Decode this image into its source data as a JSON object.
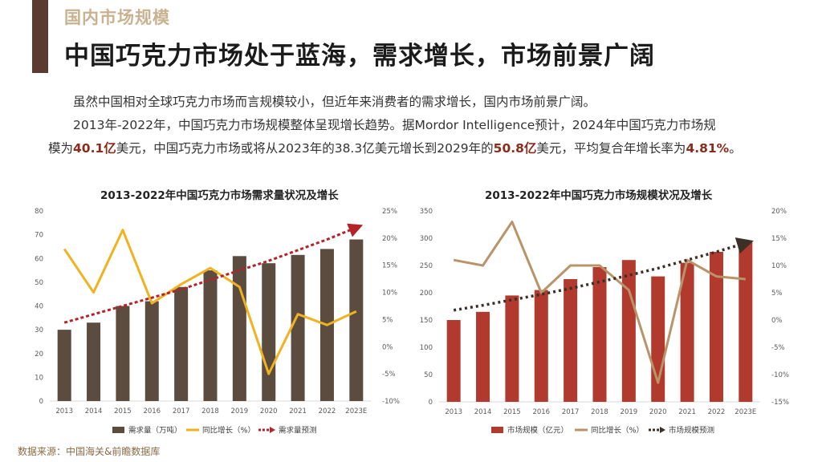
{
  "header": {
    "section_tag": "国内市场规模",
    "title": "中国巧克力市场处于蓝海，需求增长，市场前景广阔"
  },
  "body": {
    "para1": "虽然中国相对全球巧克力市场而言规模较小，但近年来消费者的需求增长，国内市场前景广阔。",
    "para2_a": "2013年-2022年，中国巧克力市场规模整体呈现增长趋势。据Mordor Intelligence预计，2024年中国巧克力市场规",
    "para2_b_pre": "模为",
    "para2_b_bold1": "40.1亿",
    "para2_b_mid1": "美元，中国巧克力市场或将从2023年的38.3亿美元增长到2029年的",
    "para2_b_bold2": "50.8亿",
    "para2_b_mid2": "美元，平均复合年增长率为",
    "para2_b_bold3": "4.81%",
    "para2_b_end": "。"
  },
  "source": "数据来源：中国海关&前瞻数据库",
  "colors": {
    "demand_bar": "#5b4c3f",
    "demand_line": "#f0b21f",
    "demand_trend": "#b5232a",
    "scale_bar": "#b1392d",
    "scale_line": "#b89468",
    "scale_trend": "#3b2f28"
  },
  "chart_data": [
    {
      "type": "bar",
      "title": "2013-2022年中国巧克力市场需求量状况及增长",
      "categories": [
        "2013",
        "2014",
        "2015",
        "2016",
        "2017",
        "2018",
        "2019",
        "2020",
        "2021",
        "2022",
        "2023E"
      ],
      "left_ticks": [
        "0",
        "10",
        "20",
        "30",
        "40",
        "50",
        "60",
        "70",
        "80"
      ],
      "right_ticks": [
        "-10%",
        "-5%",
        "0%",
        "5%",
        "10%",
        "15%",
        "20%",
        "25%"
      ],
      "ylim_left": [
        0,
        80
      ],
      "ylim_right": [
        -10,
        25
      ],
      "series": [
        {
          "name": "需求量（万吨）",
          "kind": "bar",
          "values": [
            30,
            33,
            40,
            42,
            48,
            55,
            61,
            58,
            61.5,
            64,
            68
          ]
        },
        {
          "name": "同比增长（%）",
          "kind": "line",
          "axis": "right",
          "values": [
            18,
            10,
            21.5,
            8,
            11.5,
            14.5,
            11,
            -5,
            6,
            4,
            6.5
          ]
        },
        {
          "name": "需求量预测",
          "kind": "trend",
          "values": [
            33,
            36.5,
            40,
            43.5,
            47,
            51,
            55,
            59,
            63.5,
            68,
            73
          ]
        }
      ],
      "legend": [
        "需求量（万吨）",
        "同比增长（%）",
        "需求量预测"
      ],
      "legend_position": "bottom"
    },
    {
      "type": "bar",
      "title": "2013-2022年中国巧克力市场规模状况及增长",
      "categories": [
        "2013",
        "2014",
        "2015",
        "2016",
        "2017",
        "2018",
        "2019",
        "2020",
        "2021",
        "2022",
        "2023E"
      ],
      "left_ticks": [
        "0",
        "50",
        "100",
        "150",
        "200",
        "250",
        "300",
        "350"
      ],
      "right_ticks": [
        "-15%",
        "-10%",
        "-5%",
        "0%",
        "5%",
        "10%",
        "15%",
        "20%"
      ],
      "ylim_left": [
        0,
        350
      ],
      "ylim_right": [
        -15,
        20
      ],
      "series": [
        {
          "name": "市场规模（亿元）",
          "kind": "bar",
          "values": [
            150,
            165,
            195,
            205,
            225,
            247,
            260,
            230,
            255,
            275,
            295
          ]
        },
        {
          "name": "同比增长（%）",
          "kind": "line",
          "axis": "right",
          "values": [
            11,
            10,
            18,
            5,
            10,
            10,
            5.5,
            -11.5,
            11,
            8,
            7.5
          ]
        },
        {
          "name": "市场规模预测",
          "kind": "trend",
          "values": [
            168,
            177,
            187,
            197,
            208,
            220,
            232,
            245,
            260,
            275,
            291
          ]
        }
      ],
      "legend": [
        "市场规模（亿元）",
        "同比增长（%）",
        "市场规模预测"
      ],
      "legend_position": "bottom"
    }
  ]
}
